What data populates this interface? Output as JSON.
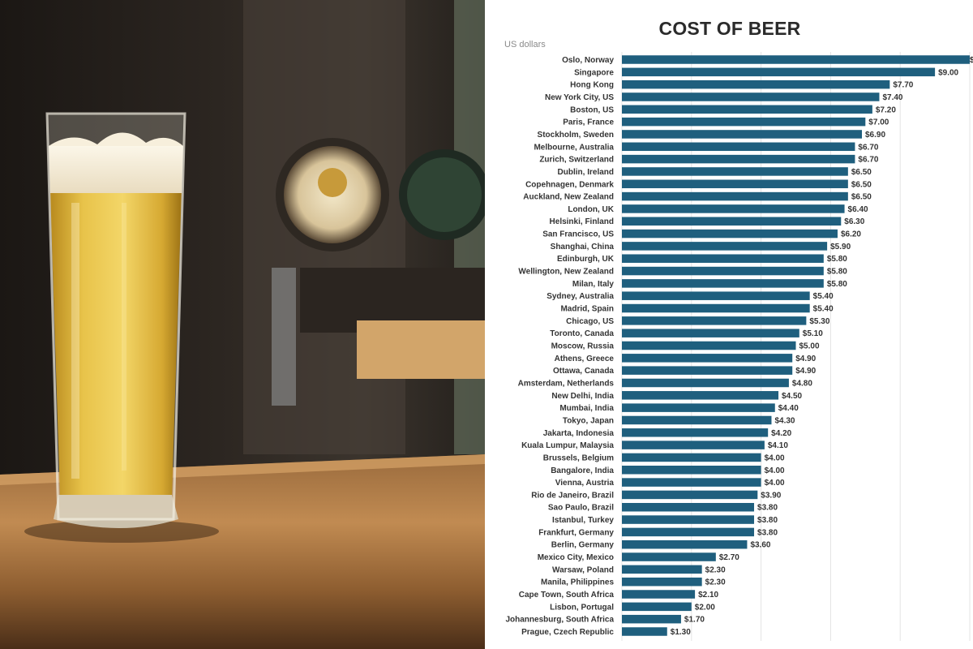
{
  "chart_data": {
    "type": "bar",
    "orientation": "horizontal",
    "title": "COST OF BEER",
    "units_label": "US dollars",
    "bar_color": "#1f5f7e",
    "categories": [
      "Oslo, Norway",
      "Singapore",
      "Hong Kong",
      "New York City, US",
      "Boston, US",
      "Paris, France",
      "Stockholm, Sweden",
      "Melbourne, Australia",
      "Zurich, Switzerland",
      "Dublin, Ireland",
      "Copehnagen, Denmark",
      "Auckland, New Zealand",
      "London, UK",
      "Helsinki, Finland",
      "San Francisco, US",
      "Shanghai, China",
      "Edinburgh, UK",
      "Wellington, New Zealand",
      "Milan, Italy",
      "Sydney, Australia",
      "Madrid, Spain",
      "Chicago, US",
      "Toronto, Canada",
      "Moscow, Russia",
      "Athens, Greece",
      "Ottawa, Canada",
      "Amsterdam, Netherlands",
      "New Delhi, India",
      "Mumbai, India",
      "Tokyo, Japan",
      "Jakarta, Indonesia",
      "Kuala Lumpur, Malaysia",
      "Brussels, Belgium",
      "Bangalore, India",
      "Vienna, Austria",
      "Rio de Janeiro, Brazil",
      "Sao Paulo, Brazil",
      "Istanbul, Turkey",
      "Frankfurt, Germany",
      "Berlin, Germany",
      "Mexico City, Mexico",
      "Warsaw, Poland",
      "Manila, Philippines",
      "Cape Town, South Africa",
      "Lisbon, Portugal",
      "Johannesburg, South Africa",
      "Prague, Czech Republic"
    ],
    "values": [
      10.0,
      9.0,
      7.7,
      7.4,
      7.2,
      7.0,
      6.9,
      6.7,
      6.7,
      6.5,
      6.5,
      6.5,
      6.4,
      6.3,
      6.2,
      5.9,
      5.8,
      5.8,
      5.8,
      5.4,
      5.4,
      5.3,
      5.1,
      5.0,
      4.9,
      4.9,
      4.8,
      4.5,
      4.4,
      4.3,
      4.2,
      4.1,
      4.0,
      4.0,
      4.0,
      3.9,
      3.8,
      3.8,
      3.8,
      3.6,
      2.7,
      2.3,
      2.3,
      2.1,
      2.0,
      1.7,
      1.3
    ],
    "value_labels": [
      "$",
      "$9.00",
      "$7.70",
      "$7.40",
      "$7.20",
      "$7.00",
      "$6.90",
      "$6.70",
      "$6.70",
      "$6.50",
      "$6.50",
      "$6.50",
      "$6.40",
      "$6.30",
      "$6.20",
      "$5.90",
      "$5.80",
      "$5.80",
      "$5.80",
      "$5.40",
      "$5.40",
      "$5.30",
      "$5.10",
      "$5.00",
      "$4.90",
      "$4.90",
      "$4.80",
      "$4.50",
      "$4.40",
      "$4.30",
      "$4.20",
      "$4.10",
      "$4.00",
      "$4.00",
      "$4.00",
      "$3.90",
      "$3.80",
      "$3.80",
      "$3.80",
      "$3.60",
      "$2.70",
      "$2.30",
      "$2.30",
      "$2.10",
      "$2.00",
      "$1.70",
      "$1.30"
    ],
    "xlim": [
      0,
      10
    ],
    "x_gridlines": [
      0,
      2,
      4,
      6,
      8,
      10
    ],
    "grid": true,
    "legend": "none"
  },
  "photo": {
    "description_icon": "beer-glass-photo"
  }
}
